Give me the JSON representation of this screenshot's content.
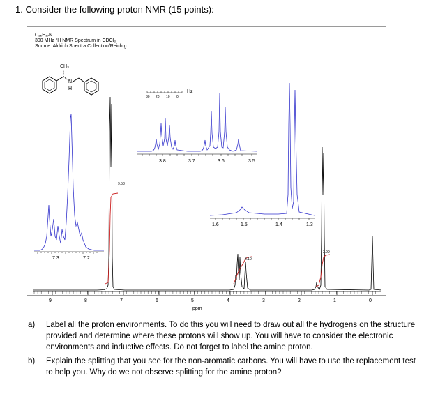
{
  "header": {
    "title": "1.  Consider the following proton NMR (15 points):"
  },
  "spectrum": {
    "formula": "C₁₅H₁₇N",
    "instrument": "300 MHz ¹H NMR Spectrum in CDCl₃",
    "source": "Source: Aldrich Spectra Collection/Reich g",
    "structure_labels": {
      "methyl": "CH₃",
      "nitrogen": "N",
      "hydrogen": "H"
    },
    "axis_label": "ppm",
    "x_ticks": [
      "9",
      "8",
      "7",
      "6",
      "5",
      "4",
      "3",
      "2",
      "1",
      "0"
    ],
    "hz_scale": {
      "unit": "Hz",
      "ticks": [
        "30",
        "20",
        "10",
        "0"
      ]
    },
    "inset_aromatic_ticks": [
      "7.3",
      "7.2"
    ],
    "inset_methine_ticks": [
      "3.8",
      "3.7",
      "3.6",
      "3.5"
    ],
    "inset_nh_ticks": [
      "1.6",
      "1.5",
      "1.4",
      "1.3"
    ],
    "integrals": [
      "9.58",
      "3.10",
      "3.99"
    ]
  },
  "chart_data": {
    "type": "line",
    "xlabel": "ppm",
    "xlim": [
      9.6,
      -0.2
    ],
    "peaks": [
      {
        "ppm": 7.25,
        "integral": "9.58"
      },
      {
        "ppm": 3.7,
        "integral": "3.10"
      },
      {
        "ppm": 3.55,
        "integral": "3.10"
      },
      {
        "ppm": 1.5
      },
      {
        "ppm": 1.35,
        "integral": "3.99"
      },
      {
        "ppm": 0.0
      }
    ]
  },
  "questions": [
    {
      "letter": "a)",
      "text": "Label all the proton environments.  To do this you will need to draw out all the hydrogens on the structure provided and determine where these protons will show up.  You will have to consider the electronic environments and inductive effects.  Do not forget to label the amine proton."
    },
    {
      "letter": "b)",
      "text": "Explain the splitting that you see for the non-aromatic carbons.  You will have to use the replacement test to help you.  Why do we not observe splitting for the amine proton?"
    }
  ]
}
